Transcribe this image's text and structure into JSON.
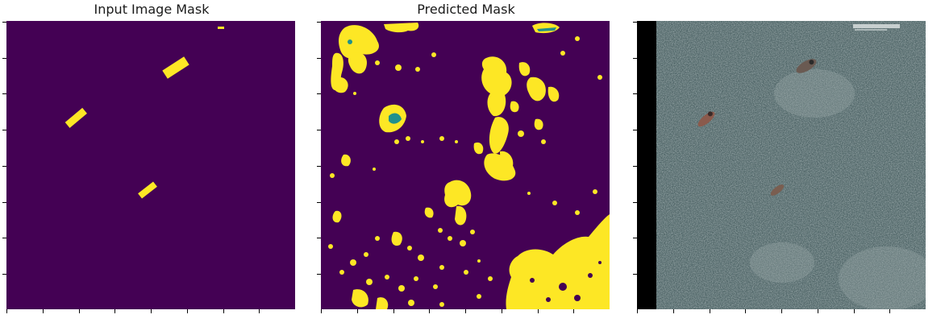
{
  "figure": {
    "panels": [
      {
        "title": "Input Image Mask"
      },
      {
        "title": "Predicted Mask"
      },
      {
        "title": ""
      }
    ]
  },
  "colors": {
    "mask_background": "#440154",
    "mask_foreground": "#fde725",
    "mask_edge": "#21918c",
    "aerial_base": "#4e6466",
    "aerial_dark": "#2d3d40",
    "aerial_light": "#8a9c9e",
    "strip": "#000000"
  }
}
